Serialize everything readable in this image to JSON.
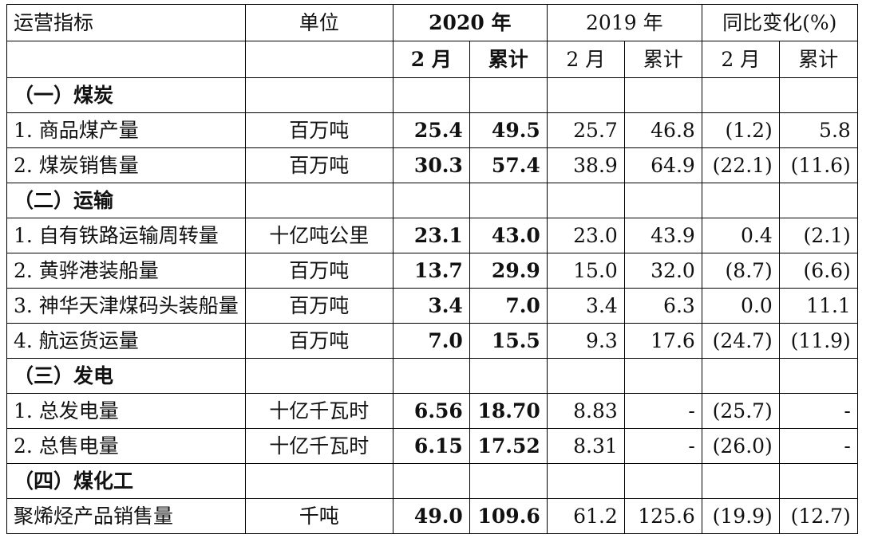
{
  "header": {
    "col_indicator": "运营指标",
    "col_unit": "单位",
    "col_2020": "2020 年",
    "col_2019": "2019 年",
    "col_yoy": "同比变化(%)",
    "sub_2020_feb": "2 月",
    "sub_2020_cum": "累计",
    "sub_2019_feb": "2 月",
    "sub_2019_cum": "累计",
    "sub_yoy_feb": "2 月",
    "sub_yoy_cum": "累计"
  },
  "rows": [
    {
      "section": "（一）煤炭"
    },
    {
      "name": "1. 商品煤产量",
      "unit": "百万吨",
      "v2020_feb": "25.4",
      "v2020_cum": "49.5",
      "v2019_feb": "25.7",
      "v2019_cum": "46.8",
      "yoy_feb": "(1.2)",
      "yoy_cum": "5.8"
    },
    {
      "name": "2. 煤炭销售量",
      "unit": "百万吨",
      "v2020_feb": "30.3",
      "v2020_cum": "57.4",
      "v2019_feb": "38.9",
      "v2019_cum": "64.9",
      "yoy_feb": "(22.1)",
      "yoy_cum": "(11.6)"
    },
    {
      "section": "（二）运输"
    },
    {
      "name": "1. 自有铁路运输周转量",
      "unit": "十亿吨公里",
      "v2020_feb": "23.1",
      "v2020_cum": "43.0",
      "v2019_feb": "23.0",
      "v2019_cum": "43.9",
      "yoy_feb": "0.4",
      "yoy_cum": "(2.1)"
    },
    {
      "name": "2. 黄骅港装船量",
      "unit": "百万吨",
      "v2020_feb": "13.7",
      "v2020_cum": "29.9",
      "v2019_feb": "15.0",
      "v2019_cum": "32.0",
      "yoy_feb": "(8.7)",
      "yoy_cum": "(6.6)"
    },
    {
      "name": "3. 神华天津煤码头装船量",
      "unit": "百万吨",
      "v2020_feb": "3.4",
      "v2020_cum": "7.0",
      "v2019_feb": "3.4",
      "v2019_cum": "6.3",
      "yoy_feb": "0.0",
      "yoy_cum": "11.1"
    },
    {
      "name": "4. 航运货运量",
      "unit": "百万吨",
      "v2020_feb": "7.0",
      "v2020_cum": "15.5",
      "v2019_feb": "9.3",
      "v2019_cum": "17.6",
      "yoy_feb": "(24.7)",
      "yoy_cum": "(11.9)"
    },
    {
      "section": "（三）发电"
    },
    {
      "name": "1. 总发电量",
      "unit": "十亿千瓦时",
      "v2020_feb": "6.56",
      "v2020_cum": "18.70",
      "v2019_feb": "8.83",
      "v2019_cum": "-",
      "yoy_feb": "(25.7)",
      "yoy_cum": "-"
    },
    {
      "name": "2. 总售电量",
      "unit": "十亿千瓦时",
      "v2020_feb": "6.15",
      "v2020_cum": "17.52",
      "v2019_feb": "8.31",
      "v2019_cum": "-",
      "yoy_feb": "(26.0)",
      "yoy_cum": "-"
    },
    {
      "section": "（四）煤化工"
    },
    {
      "name": "聚烯烃产品销售量",
      "unit": "千吨",
      "v2020_feb": "49.0",
      "v2020_cum": "109.6",
      "v2019_feb": "61.2",
      "v2019_cum": "125.6",
      "yoy_feb": "(19.9)",
      "yoy_cum": "(12.7)"
    }
  ]
}
